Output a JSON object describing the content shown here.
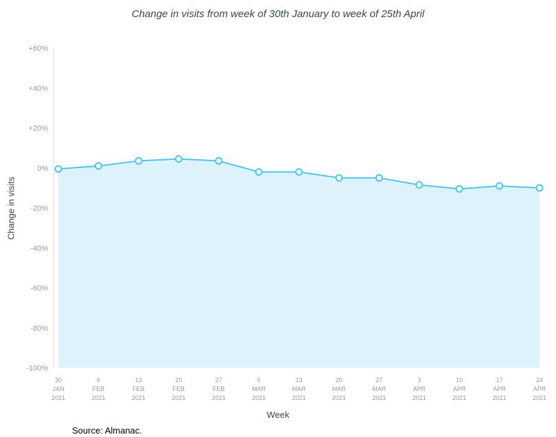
{
  "source": "Source: Almanac.",
  "chart_data": {
    "type": "area",
    "title": "Change in visits from week of 30th January to week of 25th April",
    "xlabel": "Week",
    "ylabel": "Change in visits",
    "ylim": [
      -100,
      60
    ],
    "grid": false,
    "legend": "none",
    "y_ticks": [
      60,
      40,
      20,
      0,
      -20,
      -40,
      -60,
      -80,
      -100
    ],
    "y_tick_labels": [
      "+60%",
      "+40%",
      "+20%",
      "0%",
      "-20%",
      "-40%",
      "-60%",
      "-80%",
      "-100%"
    ],
    "categories": [
      [
        "30",
        "JAN",
        "2021"
      ],
      [
        "6",
        "FEB",
        "2021"
      ],
      [
        "13",
        "FEB",
        "2021"
      ],
      [
        "20",
        "FEB",
        "2021"
      ],
      [
        "27",
        "FEB",
        "2021"
      ],
      [
        "6",
        "MAR",
        "2021"
      ],
      [
        "13",
        "MAR",
        "2021"
      ],
      [
        "20",
        "MAR",
        "2021"
      ],
      [
        "27",
        "MAR",
        "2021"
      ],
      [
        "3",
        "APR",
        "2021"
      ],
      [
        "10",
        "APR",
        "2021"
      ],
      [
        "17",
        "APR",
        "2021"
      ],
      [
        "24",
        "APR",
        "2021"
      ]
    ],
    "values": [
      -0.5,
      1,
      3.5,
      4.5,
      3.5,
      -2,
      -2,
      -5,
      -5,
      -8.5,
      -10.5,
      -9,
      -10
    ],
    "colors": {
      "line": "#4dc6ec",
      "area": "#ddf2fb",
      "marker_fill": "#ffffff",
      "axis_text": "#999999",
      "axis_line": "#d8d8d8"
    }
  }
}
